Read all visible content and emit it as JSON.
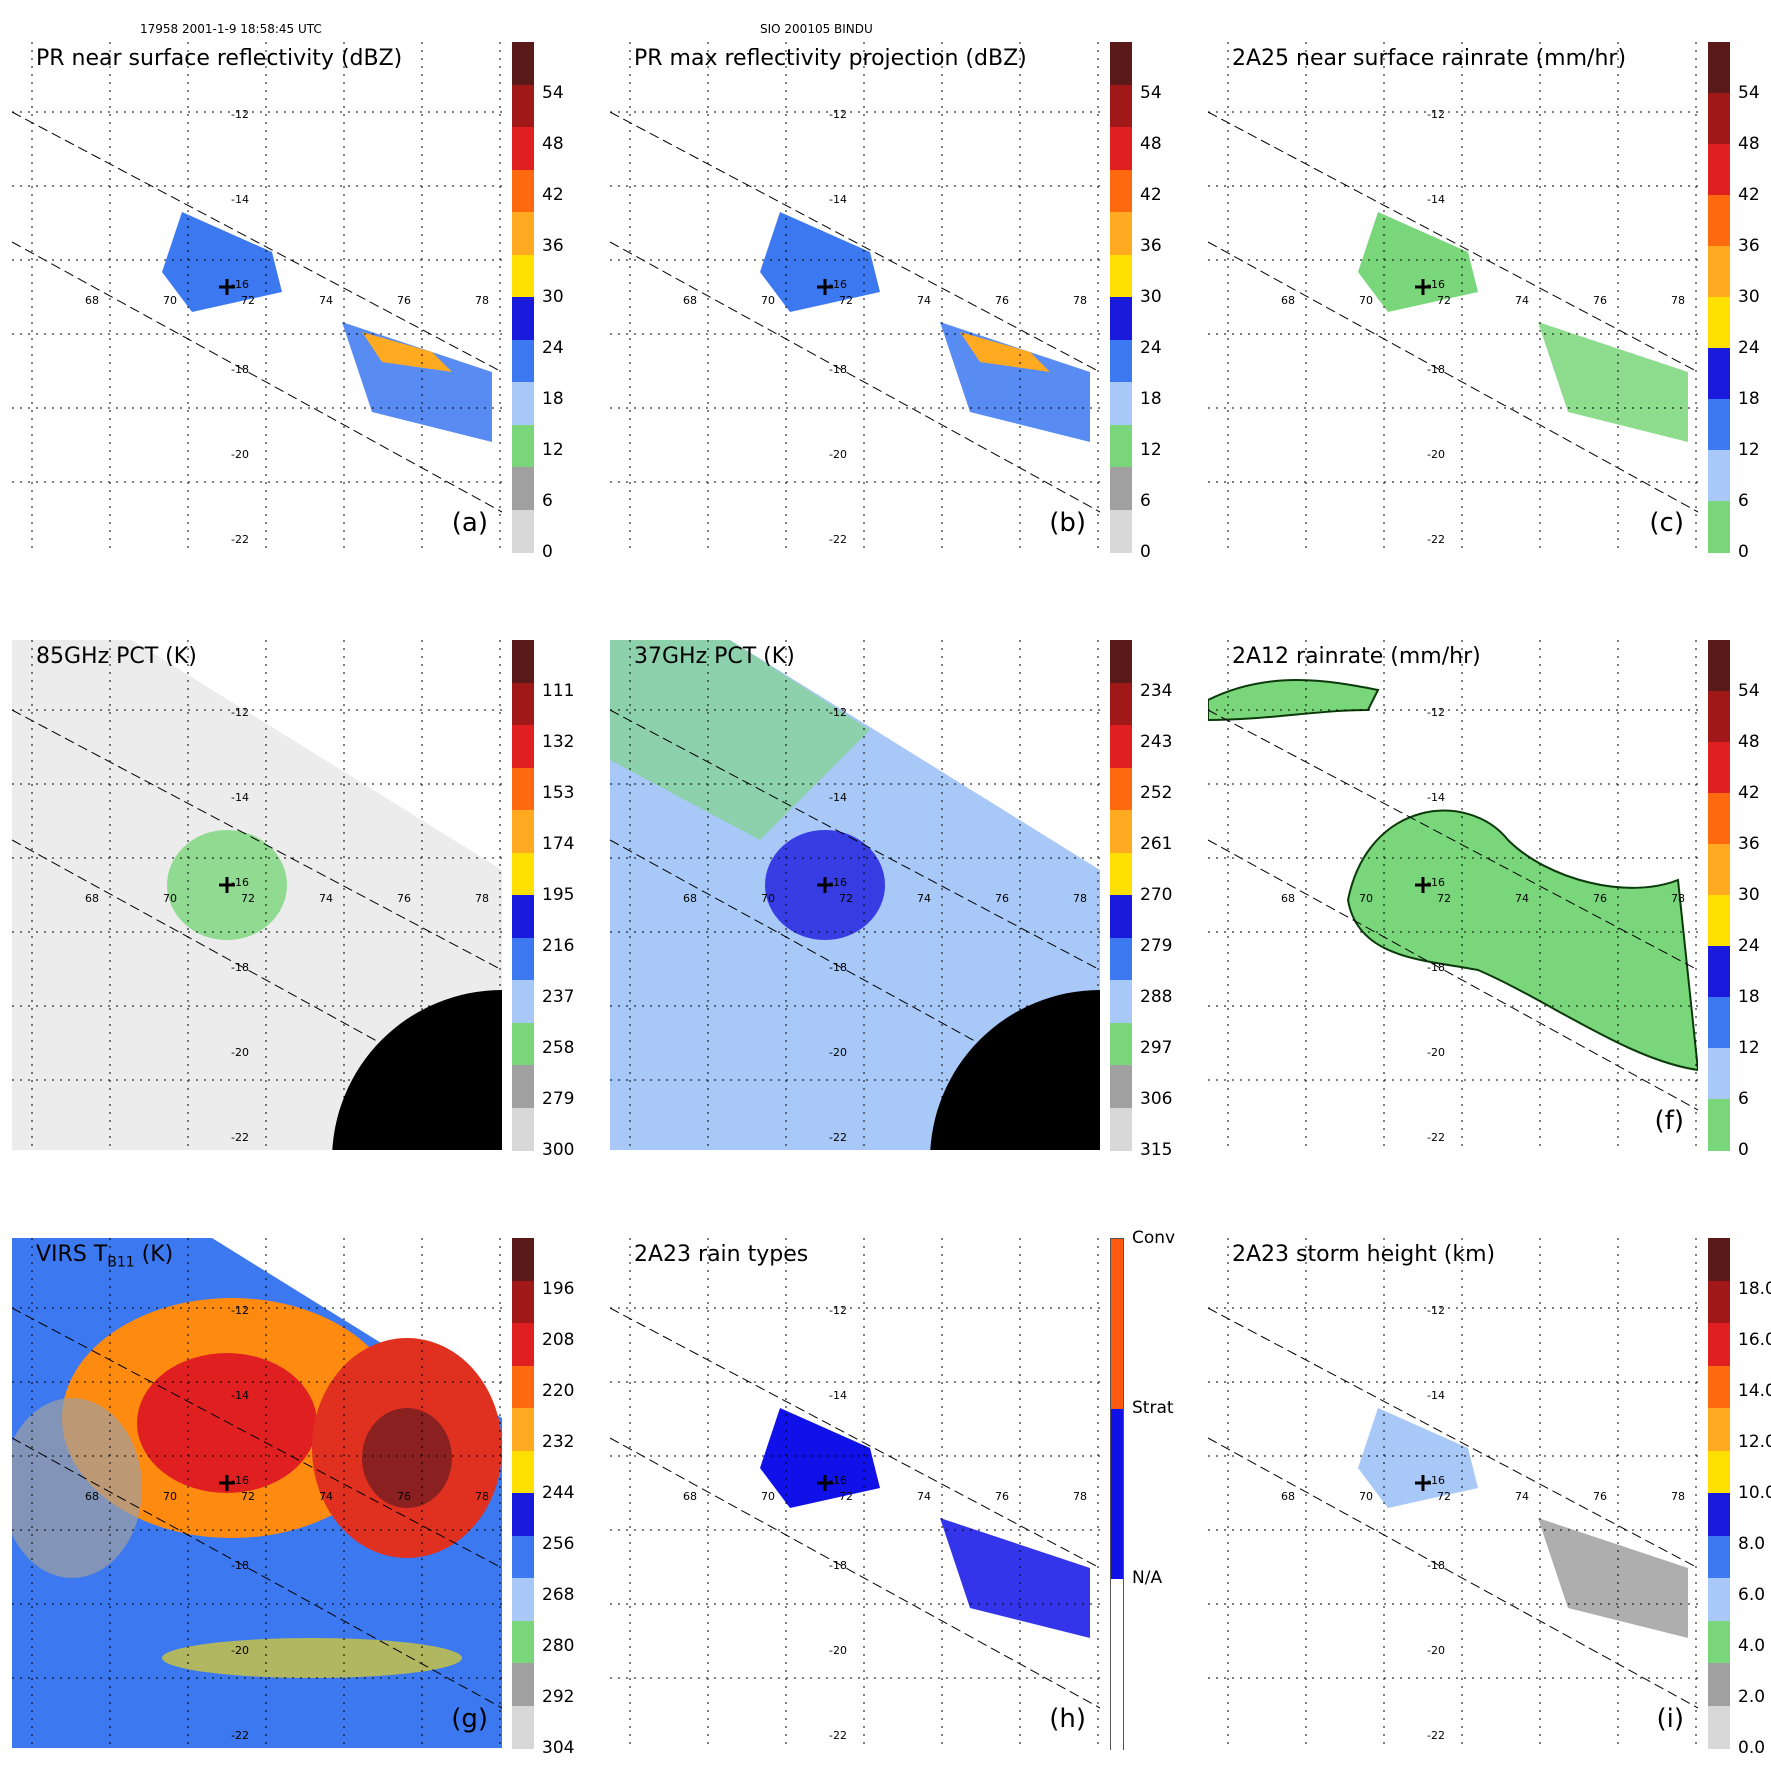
{
  "header": {
    "orbit_time": "17958 2001-1-9 18:58:45 UTC",
    "storm": "SIO 200105 BINDU"
  },
  "lon_labels": [
    "68",
    "70",
    "72",
    "74",
    "76",
    "78"
  ],
  "lat_labels": [
    "-12",
    "-14",
    "-16",
    "-18",
    "-20",
    "-22"
  ],
  "panels": [
    {
      "id": "a",
      "title": "PR near surface reflectivity (dBZ)",
      "label": "(a)",
      "ticks": [
        "54",
        "48",
        "42",
        "36",
        "30",
        "24",
        "18",
        "12",
        "6",
        "0"
      ],
      "colors": [
        "#5a1a1a",
        "#a01818",
        "#e02020",
        "#ff6a10",
        "#ffaa20",
        "#ffe000",
        "#1a1adc",
        "#3c78f0",
        "#a8c8f8",
        "#7ad67a",
        "#a0a0a0",
        "#d8d8d8"
      ]
    },
    {
      "id": "b",
      "title": "PR max reflectivity projection (dBZ)",
      "label": "(b)",
      "ticks": [
        "54",
        "48",
        "42",
        "36",
        "30",
        "24",
        "18",
        "12",
        "6",
        "0"
      ],
      "colors": [
        "#5a1a1a",
        "#a01818",
        "#e02020",
        "#ff6a10",
        "#ffaa20",
        "#ffe000",
        "#1a1adc",
        "#3c78f0",
        "#a8c8f8",
        "#7ad67a",
        "#a0a0a0",
        "#d8d8d8"
      ]
    },
    {
      "id": "c",
      "title": "2A25 near surface rainrate (mm/hr)",
      "label": "(c)",
      "ticks": [
        "54",
        "48",
        "42",
        "36",
        "30",
        "24",
        "18",
        "12",
        "6",
        "0"
      ],
      "colors": [
        "#5a1a1a",
        "#a01818",
        "#e02020",
        "#ff6a10",
        "#ffaa20",
        "#ffe000",
        "#1a1adc",
        "#3c78f0",
        "#a8c8f8",
        "#7ad67a"
      ]
    },
    {
      "id": "d",
      "title": "85GHz PCT (K)",
      "label": "",
      "ticks": [
        "111",
        "132",
        "153",
        "174",
        "195",
        "216",
        "237",
        "258",
        "279",
        "300"
      ],
      "colors": [
        "#5a1a1a",
        "#a01818",
        "#e02020",
        "#ff6a10",
        "#ffaa20",
        "#ffe000",
        "#1a1adc",
        "#3c78f0",
        "#a8c8f8",
        "#7ad67a",
        "#a0a0a0",
        "#d8d8d8"
      ]
    },
    {
      "id": "e",
      "title": "37GHz PCT (K)",
      "label": "",
      "ticks": [
        "234",
        "243",
        "252",
        "261",
        "270",
        "279",
        "288",
        "297",
        "306",
        "315"
      ],
      "colors": [
        "#5a1a1a",
        "#a01818",
        "#e02020",
        "#ff6a10",
        "#ffaa20",
        "#ffe000",
        "#1a1adc",
        "#3c78f0",
        "#a8c8f8",
        "#7ad67a",
        "#a0a0a0",
        "#d8d8d8"
      ]
    },
    {
      "id": "f",
      "title": "2A12 rainrate (mm/hr)",
      "label": "(f)",
      "ticks": [
        "54",
        "48",
        "42",
        "36",
        "30",
        "24",
        "18",
        "12",
        "6",
        "0"
      ],
      "colors": [
        "#5a1a1a",
        "#a01818",
        "#e02020",
        "#ff6a10",
        "#ffaa20",
        "#ffe000",
        "#1a1adc",
        "#3c78f0",
        "#a8c8f8",
        "#7ad67a"
      ]
    },
    {
      "id": "g",
      "title": "VIRS T",
      "title_sub": "B11",
      "title_tail": " (K)",
      "label": "(g)",
      "ticks": [
        "196",
        "208",
        "220",
        "232",
        "244",
        "256",
        "268",
        "280",
        "292",
        "304"
      ],
      "colors": [
        "#5a1a1a",
        "#a01818",
        "#e02020",
        "#ff6a10",
        "#ffaa20",
        "#ffe000",
        "#1a1adc",
        "#3c78f0",
        "#a8c8f8",
        "#7ad67a",
        "#a0a0a0",
        "#d8d8d8"
      ]
    },
    {
      "id": "h",
      "title": "2A23 rain types",
      "label": "(h)",
      "ticks": [
        "Conv",
        "Strat",
        "N/A"
      ],
      "colors": [
        "#ff5a10",
        "#1010e8",
        "#ffffff"
      ]
    },
    {
      "id": "i",
      "title": "2A23 storm height (km)",
      "label": "(i)",
      "ticks": [
        "18.0",
        "16.0",
        "14.0",
        "12.0",
        "10.0",
        "8.0",
        "6.0",
        "4.0",
        "2.0",
        "0.0"
      ],
      "colors": [
        "#5a1a1a",
        "#a01818",
        "#e02020",
        "#ff6a10",
        "#ffaa20",
        "#ffe000",
        "#1a1adc",
        "#3c78f0",
        "#a8c8f8",
        "#7ad67a",
        "#a0a0a0",
        "#d8d8d8"
      ]
    }
  ]
}
